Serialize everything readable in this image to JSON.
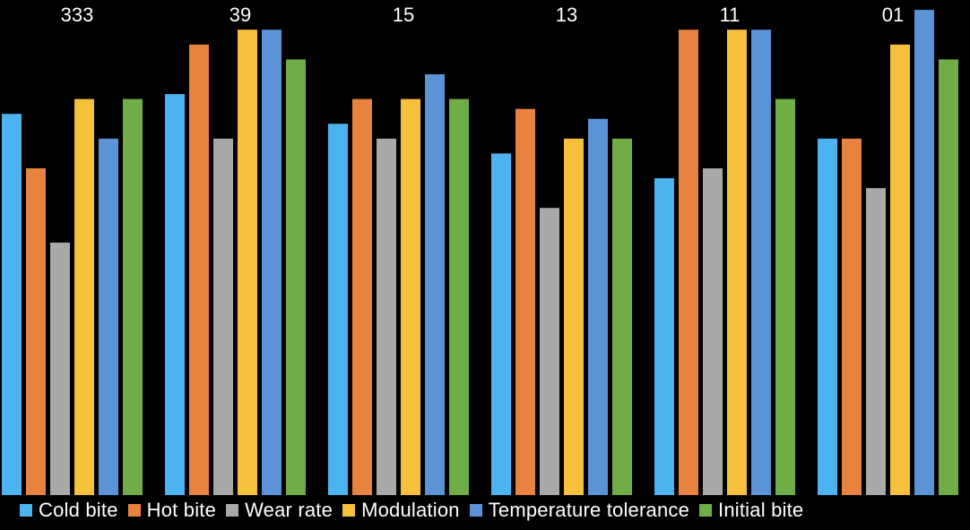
{
  "chart_data": {
    "type": "bar",
    "title": "",
    "xlabel": "",
    "ylabel": "",
    "categories": [
      "333",
      "39",
      "15",
      "13",
      "11",
      "01"
    ],
    "series": [
      {
        "name": "Cold bite",
        "color": "#4db3f0",
        "values": [
          7.7,
          8.1,
          7.5,
          6.9,
          6.4,
          7.2
        ]
      },
      {
        "name": "Hot bite",
        "color": "#e8833f",
        "values": [
          6.6,
          9.1,
          8.0,
          7.8,
          9.4,
          7.2
        ]
      },
      {
        "name": "Wear rate",
        "color": "#a9a9a9",
        "values": [
          5.1,
          7.2,
          7.2,
          5.8,
          6.6,
          6.2
        ]
      },
      {
        "name": "Modulation",
        "color": "#f6bf3c",
        "values": [
          8.0,
          9.4,
          8.0,
          7.2,
          9.4,
          9.1
        ]
      },
      {
        "name": "Temperature tolerance",
        "color": "#5b93d6",
        "values": [
          7.2,
          9.4,
          8.5,
          7.6,
          9.4,
          9.8
        ]
      },
      {
        "name": "Initial bite",
        "color": "#70ad47",
        "values": [
          8.0,
          8.8,
          8.0,
          7.2,
          8.0,
          8.8
        ]
      }
    ],
    "ylim": [
      0,
      10
    ],
    "grid": false,
    "legend": "bottom"
  }
}
